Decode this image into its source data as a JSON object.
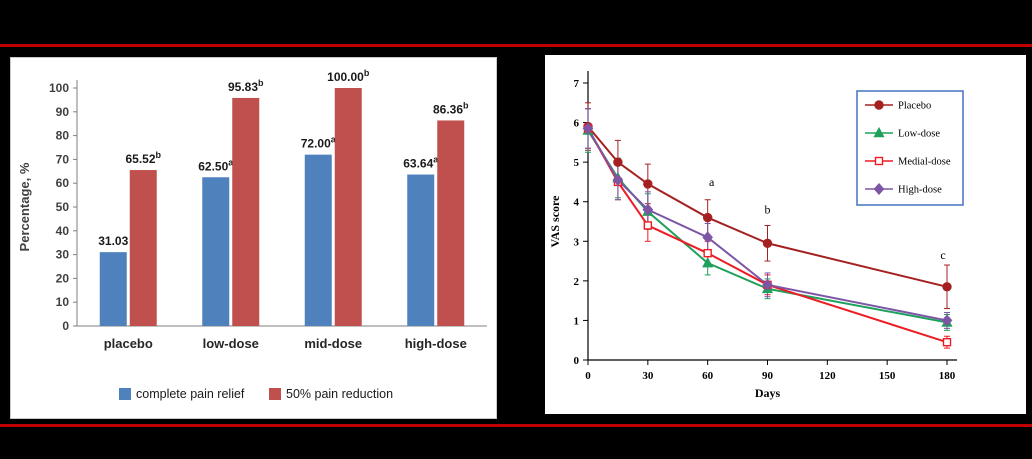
{
  "page": {
    "background": "#000000",
    "rule_color": "#C00000"
  },
  "chart_data": [
    {
      "type": "bar",
      "title": "",
      "xlabel": "",
      "ylabel": "Percentage, %",
      "ylim": [
        0,
        100
      ],
      "ytick_step": 10,
      "grid": false,
      "legend_position": "bottom",
      "categories": [
        "placebo",
        "low-dose",
        "mid-dose",
        "high-dose"
      ],
      "series": [
        {
          "name": "complete pain relief",
          "color": "#4F81BD",
          "values": [
            31.03,
            62.5,
            72.0,
            63.64
          ],
          "labels": [
            {
              "text": "31.03",
              "sup": ""
            },
            {
              "text": "62.50",
              "sup": "a"
            },
            {
              "text": "72.00",
              "sup": "a"
            },
            {
              "text": "63.64",
              "sup": "a"
            }
          ]
        },
        {
          "name": "50% pain reduction",
          "color": "#C0504D",
          "values": [
            65.52,
            95.83,
            100.0,
            86.36
          ],
          "labels": [
            {
              "text": "65.52",
              "sup": "b"
            },
            {
              "text": "95.83",
              "sup": "b"
            },
            {
              "text": "100.00",
              "sup": "b"
            },
            {
              "text": "86.36",
              "sup": "b"
            }
          ]
        }
      ]
    },
    {
      "type": "line",
      "title": "",
      "xlabel": "Days",
      "ylabel": "VAS score",
      "xlim": [
        0,
        180
      ],
      "ylim": [
        0,
        7
      ],
      "xticks": [
        0,
        30,
        60,
        90,
        120,
        150,
        180
      ],
      "yticks": [
        0,
        1,
        2,
        3,
        4,
        5,
        6,
        7
      ],
      "grid": false,
      "legend_position": "top-right",
      "legend_border_color": "#4472C4",
      "series": [
        {
          "name": "Placebo",
          "color": "#A52121",
          "marker": "circle",
          "marker_fill": "solid",
          "x": [
            0,
            15,
            30,
            60,
            90,
            180
          ],
          "y": [
            5.9,
            5.0,
            4.45,
            3.6,
            2.95,
            1.85
          ],
          "err": [
            0.6,
            0.55,
            0.5,
            0.45,
            0.45,
            0.55
          ]
        },
        {
          "name": "Low-dose",
          "color": "#1FA05C",
          "marker": "triangle",
          "marker_fill": "solid",
          "x": [
            0,
            15,
            30,
            60,
            90,
            180
          ],
          "y": [
            5.8,
            4.6,
            3.75,
            2.45,
            1.8,
            0.95
          ],
          "err": [
            0.55,
            0.5,
            0.45,
            0.3,
            0.25,
            0.2
          ]
        },
        {
          "name": "Medial-dose",
          "color": "#ED1C24",
          "marker": "square",
          "marker_fill": "open",
          "x": [
            0,
            15,
            30,
            60,
            90,
            180
          ],
          "y": [
            5.85,
            4.5,
            3.4,
            2.7,
            1.9,
            0.45
          ],
          "err": [
            0.5,
            0.45,
            0.4,
            0.3,
            0.25,
            0.15
          ]
        },
        {
          "name": "High-dose",
          "color": "#7D55A5",
          "marker": "diamond",
          "marker_fill": "solid",
          "x": [
            0,
            15,
            30,
            60,
            90,
            180
          ],
          "y": [
            5.85,
            4.55,
            3.8,
            3.1,
            1.9,
            1.0
          ],
          "err": [
            0.5,
            0.5,
            0.45,
            0.35,
            0.3,
            0.2
          ]
        }
      ],
      "annotations": [
        {
          "text": "a",
          "x": 62,
          "y": 4.4
        },
        {
          "text": "b",
          "x": 90,
          "y": 3.7
        },
        {
          "text": "c",
          "x": 178,
          "y": 2.55
        }
      ]
    }
  ]
}
